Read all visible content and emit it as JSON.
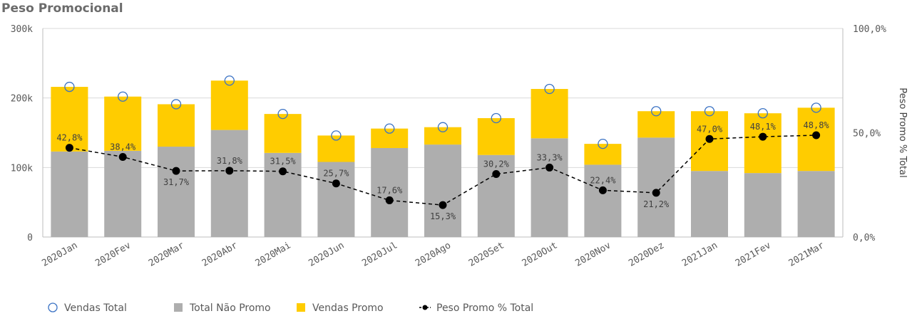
{
  "title": "Peso Promocional",
  "chart_data": {
    "type": "bar",
    "stacked": true,
    "categories": [
      "2020Jan",
      "2020Fev",
      "2020Mar",
      "2020Abr",
      "2020Mai",
      "2020Jun",
      "2020Jul",
      "2020Ago",
      "2020Set",
      "2020Out",
      "2020Nov",
      "2020Dez",
      "2021Jan",
      "2021Fev",
      "2021Mar"
    ],
    "series": [
      {
        "name": "Total Não Promo",
        "type": "bar",
        "color": "#aeaeae",
        "values": [
          123,
          124,
          130,
          154,
          121,
          108,
          128,
          133,
          118,
          142,
          104,
          143,
          95,
          92,
          95
        ]
      },
      {
        "name": "Vendas Promo",
        "type": "bar",
        "color": "#ffcc00",
        "values": [
          93,
          78,
          61,
          71,
          56,
          38,
          28,
          25,
          53,
          71,
          30,
          38,
          86,
          86,
          91
        ]
      },
      {
        "name": "Vendas Total",
        "type": "scatter",
        "color": "#3a72c4",
        "values": [
          216,
          202,
          191,
          225,
          177,
          146,
          156,
          158,
          171,
          213,
          134,
          181,
          181,
          178,
          186
        ]
      },
      {
        "name": "Peso Promo % Total",
        "type": "line",
        "axis": "right",
        "color": "#000000",
        "values": [
          42.8,
          38.4,
          31.7,
          31.8,
          31.5,
          25.7,
          17.6,
          15.3,
          30.2,
          33.3,
          22.4,
          21.2,
          47.0,
          48.1,
          48.8
        ],
        "labels": [
          "42,8%",
          "38,4%",
          "31,7%",
          "31,8%",
          "31,5%",
          "25,7%",
          "17,6%",
          "15,3%",
          "30,2%",
          "33,3%",
          "22,4%",
          "21,2%",
          "47,0%",
          "48,1%",
          "48,8%"
        ]
      }
    ],
    "y_left": {
      "ticks": [
        "0",
        "100k",
        "200k",
        "300k"
      ],
      "tick_values": [
        0,
        100,
        200,
        300
      ],
      "ylim": [
        0,
        300
      ]
    },
    "y_right": {
      "label": "Peso Promo % Total",
      "ticks": [
        "0,0%",
        "50,0%",
        "100,0%"
      ],
      "tick_values": [
        0,
        50,
        100
      ],
      "ylim": [
        0,
        100
      ]
    },
    "grid": true,
    "legend_position": "bottom-left"
  }
}
